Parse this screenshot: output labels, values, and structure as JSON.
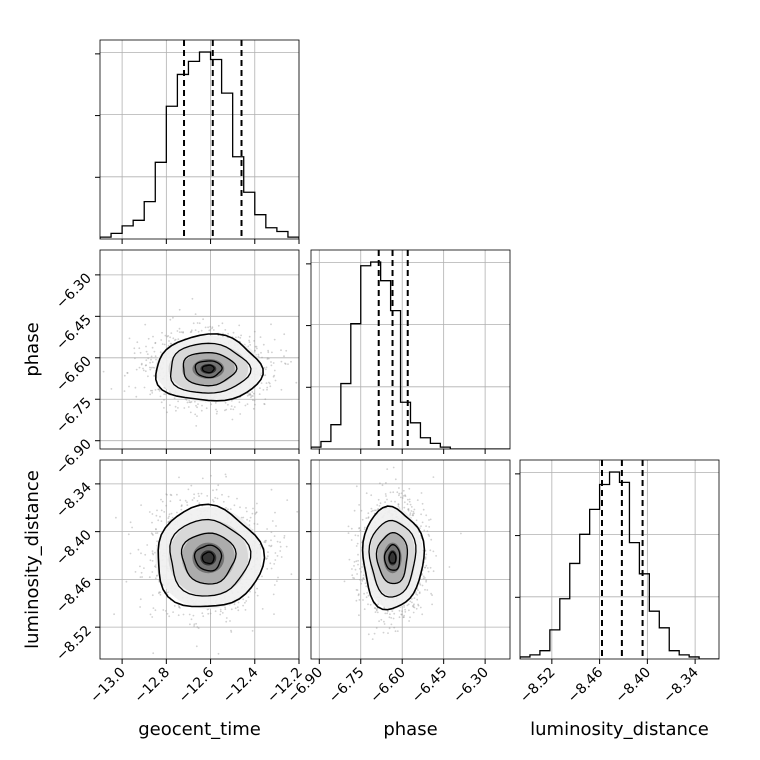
{
  "chart_data": {
    "type": "corner",
    "colors": {
      "ink": "#000000",
      "grid": "#b0b0b0",
      "scatter": "#9a9a9a"
    },
    "parameters": [
      {
        "name": "geocent_time",
        "label": "geocent_time",
        "range": [
          -13.1,
          -12.2
        ],
        "ticks": [
          -13.0,
          -12.8,
          -12.6,
          -12.4,
          -12.2
        ],
        "tick_labels": [
          "−13.0",
          "−12.8",
          "−12.6",
          "−12.4",
          "−12.2"
        ],
        "quantiles": [
          -12.72,
          -12.59,
          -12.46
        ]
      },
      {
        "name": "phase",
        "label": "phase",
        "range": [
          -6.93,
          -6.21
        ],
        "ticks": [
          -6.9,
          -6.75,
          -6.6,
          -6.45,
          -6.3
        ],
        "tick_labels": [
          "−6.90",
          "−6.75",
          "−6.60",
          "−6.45",
          "−6.30"
        ],
        "quantiles": [
          -6.685,
          -6.635,
          -6.58
        ]
      },
      {
        "name": "luminosity_distance",
        "label": "luminosity_distance",
        "range": [
          -8.56,
          -8.31
        ],
        "ticks": [
          -8.52,
          -8.46,
          -8.4,
          -8.34
        ],
        "tick_labels": [
          "−8.52",
          "−8.46",
          "−8.40",
          "−8.34"
        ],
        "quantiles": [
          -8.457,
          -8.432,
          -8.406
        ]
      }
    ],
    "histograms": [
      {
        "param": "geocent_time",
        "bin_start": -13.1,
        "bin_width": 0.05,
        "counts": [
          1,
          3,
          7,
          10,
          20,
          41,
          71,
          88,
          95,
          100,
          96,
          78,
          44,
          25,
          13,
          6,
          4,
          1
        ]
      },
      {
        "param": "phase",
        "bin_start": -6.93,
        "bin_width": 0.036,
        "counts": [
          1,
          4,
          13,
          35,
          67,
          98,
          100,
          90,
          74,
          25,
          14,
          6,
          3,
          1,
          0,
          0,
          0,
          0,
          0,
          0
        ]
      },
      {
        "param": "luminosity_distance",
        "bin_start": -8.56,
        "bin_width": 0.0125,
        "counts": [
          1,
          2,
          4,
          14,
          29,
          46,
          60,
          72,
          84,
          90,
          85,
          56,
          41,
          23,
          15,
          4,
          2,
          1,
          0,
          0
        ]
      }
    ],
    "pairs": [
      {
        "x": "geocent_time",
        "y": "phase",
        "center": [
          -12.61,
          -6.64
        ],
        "sigma": [
          0.12,
          0.06
        ]
      },
      {
        "x": "geocent_time",
        "y": "luminosity_distance",
        "center": [
          -12.61,
          -8.433
        ],
        "sigma": [
          0.12,
          0.032
        ]
      },
      {
        "x": "phase",
        "y": "luminosity_distance",
        "center": [
          -6.635,
          -8.433
        ],
        "sigma": [
          0.055,
          0.032
        ]
      }
    ],
    "grid": true
  }
}
